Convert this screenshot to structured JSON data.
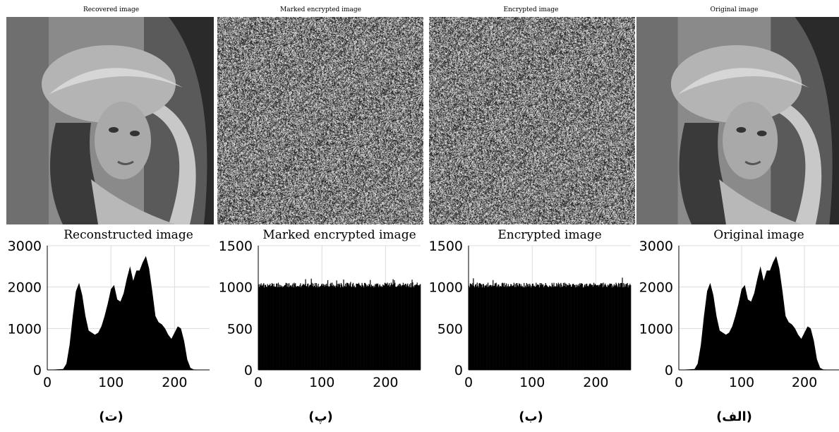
{
  "panels": [
    {
      "image_title": "Recovered image",
      "image_kind": "portrait",
      "hist_title": "Reconstructed image",
      "label": "(ت)"
    },
    {
      "image_title": "Marked encrypted image",
      "image_kind": "noise",
      "hist_title": "Marked encrypted image",
      "label": "(پ)"
    },
    {
      "image_title": "Encrypted image",
      "image_kind": "noise",
      "hist_title": "Encrypted image",
      "label": "(ب)"
    },
    {
      "image_title": "Original image",
      "image_kind": "portrait",
      "hist_title": "Original image",
      "label": "(الف)"
    }
  ],
  "chart_data": [
    {
      "type": "area",
      "title": "Reconstructed image",
      "xlim": [
        0,
        255
      ],
      "ylim": [
        0,
        3000
      ],
      "xticks": [
        0,
        100,
        200
      ],
      "yticks": [
        0,
        1000,
        2000,
        3000
      ],
      "grid": true,
      "x": [
        0,
        25,
        30,
        35,
        40,
        45,
        50,
        55,
        60,
        65,
        70,
        75,
        80,
        85,
        90,
        95,
        100,
        105,
        110,
        115,
        120,
        125,
        130,
        135,
        140,
        145,
        150,
        155,
        160,
        165,
        170,
        175,
        180,
        185,
        190,
        195,
        200,
        205,
        210,
        215,
        220,
        225,
        230,
        255
      ],
      "values": [
        0,
        20,
        150,
        600,
        1300,
        1900,
        2100,
        1800,
        1300,
        950,
        900,
        850,
        900,
        1050,
        1300,
        1600,
        1950,
        2050,
        1700,
        1650,
        1850,
        2200,
        2500,
        2150,
        2400,
        2400,
        2600,
        2750,
        2450,
        1900,
        1300,
        1150,
        1100,
        1000,
        850,
        750,
        900,
        1050,
        1000,
        700,
        250,
        50,
        10,
        0
      ]
    },
    {
      "type": "bar",
      "title": "Marked encrypted image",
      "xlim": [
        0,
        255
      ],
      "ylim": [
        0,
        1500
      ],
      "xticks": [
        0,
        100,
        200
      ],
      "yticks": [
        0,
        500,
        1000,
        1500
      ],
      "grid": true,
      "mean_count": 1024,
      "range": [
        970,
        1110
      ]
    },
    {
      "type": "bar",
      "title": "Encrypted image",
      "xlim": [
        0,
        255
      ],
      "ylim": [
        0,
        1500
      ],
      "xticks": [
        0,
        100,
        200
      ],
      "yticks": [
        0,
        500,
        1000,
        1500
      ],
      "grid": true,
      "mean_count": 1024,
      "range": [
        970,
        1120
      ]
    },
    {
      "type": "area",
      "title": "Original image",
      "xlim": [
        0,
        255
      ],
      "ylim": [
        0,
        3000
      ],
      "xticks": [
        0,
        100,
        200
      ],
      "yticks": [
        0,
        1000,
        2000,
        3000
      ],
      "grid": true,
      "x": [
        0,
        25,
        30,
        35,
        40,
        45,
        50,
        55,
        60,
        65,
        70,
        75,
        80,
        85,
        90,
        95,
        100,
        105,
        110,
        115,
        120,
        125,
        130,
        135,
        140,
        145,
        150,
        155,
        160,
        165,
        170,
        175,
        180,
        185,
        190,
        195,
        200,
        205,
        210,
        215,
        220,
        225,
        230,
        255
      ],
      "values": [
        0,
        20,
        150,
        600,
        1300,
        1900,
        2100,
        1800,
        1300,
        950,
        900,
        850,
        900,
        1050,
        1300,
        1600,
        1950,
        2050,
        1700,
        1650,
        1850,
        2200,
        2500,
        2150,
        2400,
        2400,
        2600,
        2750,
        2450,
        1900,
        1300,
        1150,
        1100,
        1000,
        850,
        750,
        900,
        1050,
        1000,
        700,
        250,
        50,
        10,
        0
      ]
    }
  ]
}
